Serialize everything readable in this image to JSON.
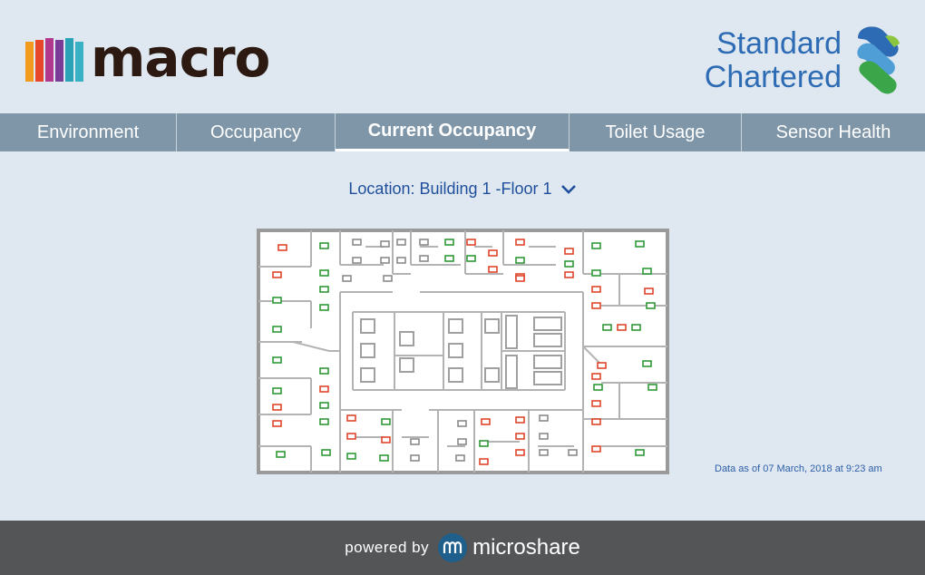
{
  "brand": {
    "name": "macro",
    "partner_line1": "Standard",
    "partner_line2": "Chartered"
  },
  "tabs": [
    {
      "label": "Environment",
      "active": false
    },
    {
      "label": "Occupancy",
      "active": false
    },
    {
      "label": "Current Occupancy",
      "active": true
    },
    {
      "label": "Toilet Usage",
      "active": false
    },
    {
      "label": "Sensor Health",
      "active": false
    }
  ],
  "location": {
    "label": "Location:",
    "value": "Building 1 -Floor 1"
  },
  "status_colors": {
    "occupied": "#e0452b",
    "vacant": "#2e9a36",
    "offline": "#8a8a8a"
  },
  "timestamp": "Data as of 07 March, 2018 at 9:23 am",
  "footer": {
    "powered": "powered by",
    "provider": "microshare"
  }
}
